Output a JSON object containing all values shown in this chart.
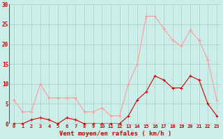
{
  "hours": [
    0,
    1,
    2,
    3,
    4,
    5,
    6,
    7,
    8,
    9,
    10,
    11,
    12,
    13,
    14,
    15,
    16,
    17,
    18,
    19,
    20,
    21,
    22,
    23
  ],
  "wind_mean": [
    0,
    0,
    1,
    1.5,
    1,
    0,
    1.5,
    1,
    0,
    0,
    0,
    0,
    0,
    2,
    6,
    8,
    12,
    11,
    9,
    9,
    12,
    11,
    5,
    2
  ],
  "wind_gust": [
    6,
    3,
    3,
    10,
    6.5,
    6.5,
    6.5,
    6.5,
    3,
    3,
    4,
    2,
    2,
    10,
    15,
    27,
    27,
    24,
    21,
    19.5,
    23.5,
    21,
    16,
    6
  ],
  "line_mean_color": "#cc0000",
  "line_gust_color": "#ff9999",
  "bg_color": "#cceee8",
  "grid_color": "#aacccc",
  "axis_color": "#cc0000",
  "xlabel": "Vent moyen/en rafales ( km/h )",
  "ylim": [
    0,
    30
  ],
  "yticks": [
    0,
    5,
    10,
    15,
    20,
    25,
    30
  ]
}
